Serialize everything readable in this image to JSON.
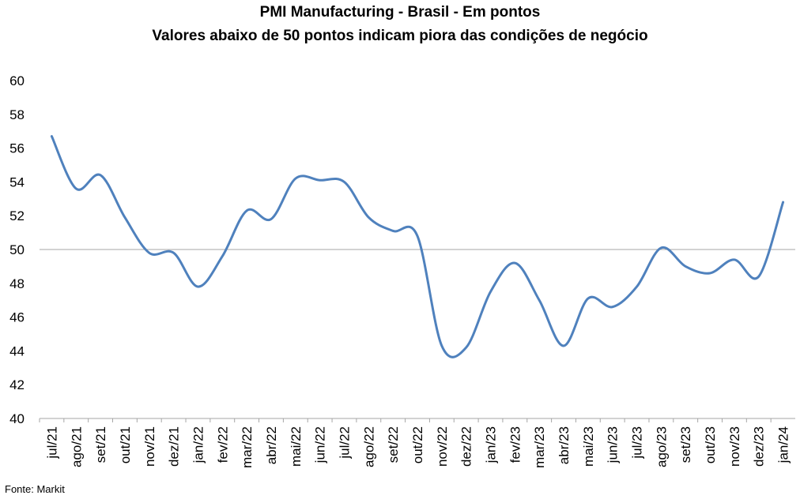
{
  "chart_data": {
    "type": "line",
    "title": "PMI Manufacturing - Brasil - Em pontos",
    "subtitle": "Valores abaixo de 50 pontos indicam piora das condições de negócio",
    "xlabel": "",
    "ylabel": "",
    "ylim": [
      40,
      60
    ],
    "yticks": [
      40,
      42,
      44,
      46,
      48,
      50,
      52,
      54,
      56,
      58,
      60
    ],
    "reference_line": 50,
    "grid": false,
    "legend": "none",
    "line_color": "#4F81BD",
    "categories": [
      "jul/21",
      "ago/21",
      "set/21",
      "out/21",
      "nov/21",
      "dez/21",
      "jan/22",
      "fev/22",
      "mar/22",
      "abr/22",
      "mai/22",
      "jun/22",
      "jul/22",
      "ago/22",
      "set/22",
      "out/22",
      "nov/22",
      "dez/22",
      "jan/23",
      "fev/23",
      "mar/23",
      "abr/23",
      "mai/23",
      "jun/23",
      "jul/23",
      "ago/23",
      "set/23",
      "out/23",
      "nov/23",
      "dez/23",
      "jan/24"
    ],
    "series": [
      {
        "values": [
          56.7,
          53.6,
          54.4,
          51.9,
          49.8,
          49.8,
          47.8,
          49.6,
          52.3,
          51.8,
          54.2,
          54.1,
          54.0,
          51.9,
          51.1,
          50.8,
          44.3,
          44.2,
          47.5,
          49.2,
          47.0,
          44.3,
          47.1,
          46.6,
          47.8,
          50.1,
          49.0,
          48.6,
          49.4,
          48.4,
          52.8
        ]
      }
    ],
    "source": "Fonte: Markit"
  }
}
